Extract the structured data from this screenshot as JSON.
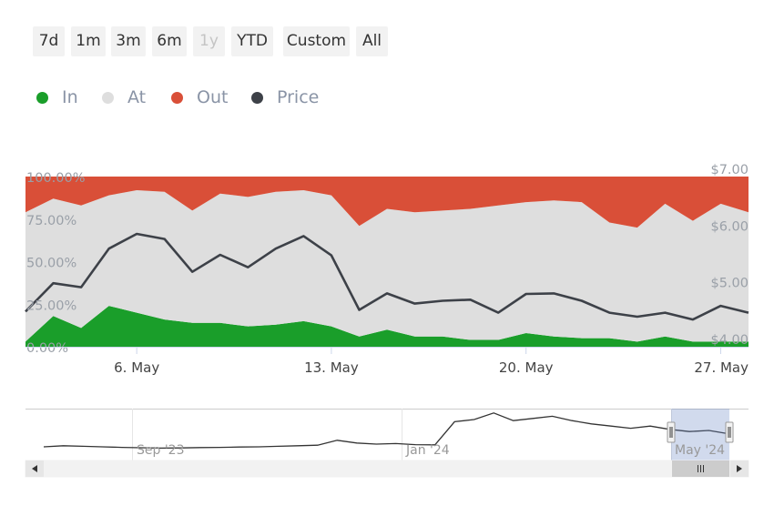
{
  "range_selector": {
    "buttons": [
      {
        "label": "7d",
        "enabled": true
      },
      {
        "label": "1m",
        "enabled": true
      },
      {
        "label": "3m",
        "enabled": true
      },
      {
        "label": "6m",
        "enabled": true
      },
      {
        "label": "1y",
        "enabled": false
      },
      {
        "label": "YTD",
        "enabled": true
      },
      {
        "label": "Custom",
        "enabled": true
      },
      {
        "label": "All",
        "enabled": true
      }
    ]
  },
  "legend": [
    {
      "name": "In",
      "color": "#1a9e2a"
    },
    {
      "name": "At",
      "color": "#dedede"
    },
    {
      "name": "Out",
      "color": "#d94f38"
    },
    {
      "name": "Price",
      "color": "#3d4148"
    }
  ],
  "chart_data": {
    "type": "area",
    "stacked_percent": true,
    "x_ticks": [
      "6. May",
      "13. May",
      "20. May",
      "27. May"
    ],
    "x_tick_days": [
      6,
      13,
      20,
      27
    ],
    "x_range": [
      2,
      28
    ],
    "y_left": {
      "ticks": [
        "100.00%",
        "75.00%",
        "50.00%",
        "25.00%",
        "0.00%"
      ],
      "range": [
        0,
        100
      ]
    },
    "y_right": {
      "ticks": [
        "$7.00",
        "$6.00",
        "$5.00",
        "$4.00"
      ],
      "range": [
        4,
        7
      ]
    },
    "x": [
      2,
      3,
      4,
      5,
      6,
      7,
      8,
      9,
      10,
      11,
      12,
      13,
      14,
      15,
      16,
      17,
      18,
      19,
      20,
      21,
      22,
      23,
      24,
      25,
      26,
      27,
      28
    ],
    "series": [
      {
        "name": "In",
        "axis": "left",
        "values": [
          3,
          18,
          11,
          24,
          20,
          16,
          14,
          14,
          12,
          13,
          15,
          12,
          6,
          10,
          6,
          6,
          4,
          4,
          8,
          6,
          5,
          5,
          3,
          6,
          3,
          3,
          3
        ]
      },
      {
        "name": "At",
        "axis": "left",
        "values": [
          76,
          69,
          72,
          65,
          72,
          75,
          66,
          76,
          76,
          78,
          77,
          77,
          65,
          71,
          73,
          74,
          77,
          79,
          77,
          80,
          80,
          68,
          67,
          78,
          71,
          81,
          76
        ]
      },
      {
        "name": "Out",
        "axis": "left",
        "values": [
          21,
          13,
          17,
          11,
          8,
          9,
          20,
          10,
          12,
          9,
          8,
          11,
          29,
          19,
          21,
          20,
          19,
          17,
          15,
          14,
          15,
          27,
          30,
          16,
          26,
          16,
          21
        ]
      },
      {
        "name": "Price",
        "axis": "right",
        "values": [
          4.62,
          5.12,
          5.05,
          5.73,
          5.99,
          5.9,
          5.32,
          5.62,
          5.4,
          5.73,
          5.95,
          5.61,
          4.65,
          4.94,
          4.76,
          4.81,
          4.83,
          4.6,
          4.93,
          4.94,
          4.81,
          4.6,
          4.53,
          4.6,
          4.48,
          4.72,
          4.6
        ]
      }
    ],
    "navigator": {
      "ticks": [
        "Sep '23",
        "Jan '24",
        "May '24"
      ],
      "history": [
        0.5,
        0.6,
        0.55,
        0.5,
        0.45,
        0.42,
        0.38,
        0.4,
        0.43,
        0.45,
        0.48,
        0.5,
        0.55,
        0.6,
        0.65,
        1.1,
        0.85,
        0.75,
        0.8,
        0.7,
        0.68,
        2.8,
        3.0,
        3.6,
        2.9,
        3.1,
        3.3,
        2.9,
        2.6,
        2.4,
        2.2,
        2.4,
        2.1,
        1.9,
        2.0,
        1.7
      ]
    }
  }
}
